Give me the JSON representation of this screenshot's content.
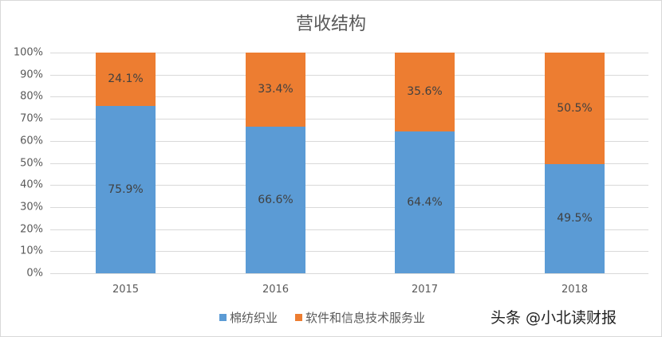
{
  "chart_data": {
    "type": "bar",
    "stacked": true,
    "percent": true,
    "title": "营收结构",
    "categories": [
      "2015",
      "2016",
      "2017",
      "2018"
    ],
    "series": [
      {
        "name": "棉纺织业",
        "color": "#5b9bd5",
        "values": [
          75.9,
          66.6,
          64.4,
          49.5
        ],
        "labels": [
          "75.9%",
          "66.6%",
          "64.4%",
          "49.5%"
        ]
      },
      {
        "name": "软件和信息技术服务业",
        "color": "#ed7d31",
        "values": [
          24.1,
          33.4,
          35.6,
          50.5
        ],
        "labels": [
          "24.1%",
          "33.4%",
          "35.6%",
          "50.5%"
        ]
      }
    ],
    "xlabel": "",
    "ylabel": "",
    "ylim": [
      0,
      100
    ],
    "yticks": [
      "0%",
      "10%",
      "20%",
      "30%",
      "40%",
      "50%",
      "60%",
      "70%",
      "80%",
      "90%",
      "100%"
    ],
    "grid": true,
    "legend_position": "bottom"
  },
  "watermark": "头条 @小北读财报"
}
